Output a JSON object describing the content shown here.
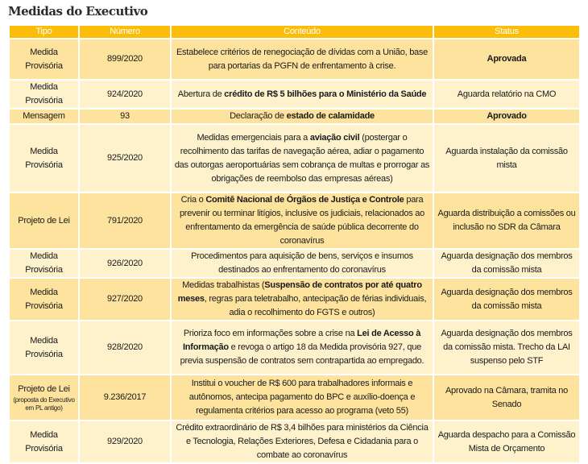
{
  "title": "Medidas do Executivo",
  "colors": {
    "header": "#fbbd08",
    "row_dark": "#fde39d",
    "row_light": "#fef2cd"
  },
  "columns": [
    "Tipo",
    "Número",
    "Conteúdo",
    "Status"
  ],
  "rows": [
    {
      "tipo": "Medida Provisória",
      "numero": "899/2020",
      "conteudo": [
        {
          "t": "Estabelece critérios de renegociação de dívidas com a União, base para portarias da PGFN de enfrentamento à crise.",
          "b": false
        }
      ],
      "status": [
        {
          "t": "Aprovada",
          "b": true
        }
      ]
    },
    {
      "tipo": "Medida Provisória",
      "numero": "924/2020",
      "conteudo": [
        {
          "t": "Abertura de ",
          "b": false
        },
        {
          "t": "crédito de R$ 5 bilhões para o Ministério da Saúde",
          "b": true
        }
      ],
      "status": [
        {
          "t": "Aguarda relatório na CMO",
          "b": false
        }
      ]
    },
    {
      "tipo": "Mensagem",
      "numero": "93",
      "conteudo": [
        {
          "t": "Declaração de ",
          "b": false
        },
        {
          "t": "estado de calamidade",
          "b": true
        }
      ],
      "status": [
        {
          "t": "Aprovado",
          "b": true
        }
      ]
    },
    {
      "tipo": "Medida Provisória",
      "numero": "925/2020",
      "conteudo": [
        {
          "t": "Medidas emergenciais para a ",
          "b": false
        },
        {
          "t": "aviação civil",
          "b": true
        },
        {
          "t": " (postergar o recolhimento das tarifas de navegação aérea, adiar o pagamento das outorgas aeroportuárias sem cobrança de multas e prorrogar as obrigações de reembolso das empresas aéreas)",
          "b": false
        }
      ],
      "status": [
        {
          "t": "Aguarda instalação da comissão mista",
          "b": false
        }
      ]
    },
    {
      "tipo": "Projeto de Lei",
      "numero": "791/2020",
      "conteudo": [
        {
          "t": "Cria o ",
          "b": false
        },
        {
          "t": "Comitê Nacional de Órgãos de Justiça e Controle",
          "b": true
        },
        {
          "t": " para prevenir ou terminar litígios, inclusive os judiciais, relacionados ao enfrentamento da emergência de saúde pública decorrente do coronavírus",
          "b": false
        }
      ],
      "status": [
        {
          "t": "Aguarda distribuição a comissões ou inclusão no SDR da Câmara",
          "b": false
        }
      ]
    },
    {
      "tipo": "Medida Provisória",
      "numero": "926/2020",
      "conteudo": [
        {
          "t": "Procedimentos para aquisição de bens, serviços e insumos destinados ao enfrentamento do coronavírus",
          "b": false
        }
      ],
      "status": [
        {
          "t": "Aguarda designação dos membros da comissão mista",
          "b": false
        }
      ]
    },
    {
      "tipo": "Medida Provisória",
      "numero": "927/2020",
      "conteudo": [
        {
          "t": "Medidas trabalhistas (",
          "b": false
        },
        {
          "t": "Suspensão de contratos por até quatro meses",
          "b": true
        },
        {
          "t": ", regras para teletrabalho, antecipação de férias individuais, adia o recolhimento do FGTS e outros)",
          "b": false
        }
      ],
      "status": [
        {
          "t": "Aguarda designação dos membros da comissão mista",
          "b": false
        }
      ]
    },
    {
      "tipo": "Medida Provisória",
      "numero": "928/2020",
      "conteudo": [
        {
          "t": "Prioriza foco em informações sobre a crise na ",
          "b": false
        },
        {
          "t": "Lei de Acesso à Informação",
          "b": true
        },
        {
          "t": " e revoga o artigo 18 da Medida provisória 927, que previa suspensão de contratos sem contrapartida ao empregado.",
          "b": false
        }
      ],
      "status": [
        {
          "t": "Aguarda designação dos membros da comissão mista. Trecho da LAI suspenso pelo STF",
          "b": false
        }
      ]
    },
    {
      "tipo": "Projeto de Lei",
      "tipo_note": "(proposta do Executivo em PL antigo)",
      "numero": "9.236/2017",
      "conteudo": [
        {
          "t": "Institui o voucher de R$ 600 para trabalhadores informais e autônomos, antecipa pagamento do BPC e auxílio-doença e regulamenta critérios para acesso ao programa (veto 55)",
          "b": false
        }
      ],
      "status": [
        {
          "t": "Aprovado na Câmara, tramita no Senado",
          "b": false
        }
      ]
    },
    {
      "tipo": "Medida Provisória",
      "numero": "929/2020",
      "conteudo": [
        {
          "t": "Crédito extraordinário de R$ 3,4 bilhões para ministérios da Ciência e Tecnologia, Relações Exteriores, Defesa e Cidadania para o combate ao coronavírus",
          "b": false
        }
      ],
      "status": [
        {
          "t": "Aguarda despacho para a Comissão Mista de Orçamento",
          "b": false
        }
      ]
    }
  ]
}
